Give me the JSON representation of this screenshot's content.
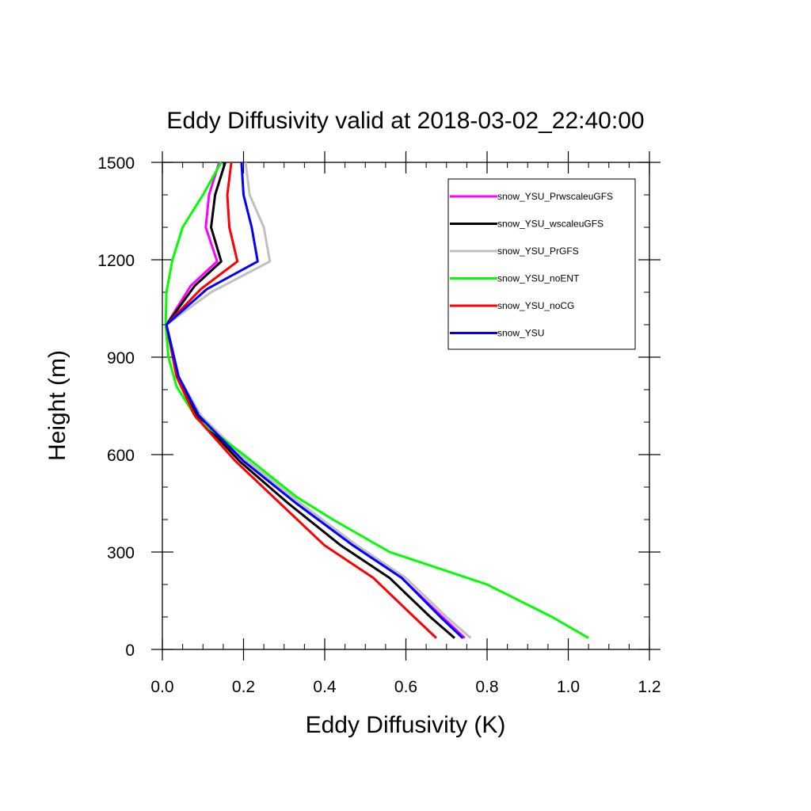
{
  "chart_data": {
    "type": "line",
    "title": "Eddy Diffusivity valid at 2018-03-02_22:40:00",
    "xlabel": "Eddy Diffusivity (K)",
    "ylabel": "Height (m)",
    "xlim": [
      0,
      1.2
    ],
    "ylim": [
      0,
      1500
    ],
    "xticks": [
      0.0,
      0.2,
      0.4,
      0.6,
      0.8,
      1.0,
      1.2
    ],
    "xtick_labels": [
      "0.0",
      "0.2",
      "0.4",
      "0.6",
      "0.8",
      "1.0",
      "1.2"
    ],
    "yticks": [
      0,
      300,
      600,
      900,
      1200,
      1500
    ],
    "ytick_labels": [
      "0",
      "300",
      "600",
      "900",
      "1200",
      "1500"
    ],
    "legend_position": "top-right",
    "series": [
      {
        "name": "snow_YSU_PrwscaleuGFS",
        "color": "#ff00ff",
        "points": [
          [
            0.745,
            35
          ],
          [
            0.69,
            100
          ],
          [
            0.59,
            220
          ],
          [
            0.47,
            320
          ],
          [
            0.33,
            450
          ],
          [
            0.2,
            580
          ],
          [
            0.09,
            720
          ],
          [
            0.04,
            840
          ],
          [
            0.01,
            1000
          ],
          [
            0.07,
            1120
          ],
          [
            0.135,
            1195
          ],
          [
            0.107,
            1300
          ],
          [
            0.115,
            1400
          ],
          [
            0.14,
            1500
          ]
        ]
      },
      {
        "name": "snow_YSU_wscaleuGFS",
        "color": "#000000",
        "points": [
          [
            0.72,
            35
          ],
          [
            0.66,
            100
          ],
          [
            0.56,
            220
          ],
          [
            0.44,
            320
          ],
          [
            0.31,
            450
          ],
          [
            0.19,
            580
          ],
          [
            0.085,
            720
          ],
          [
            0.04,
            840
          ],
          [
            0.01,
            1000
          ],
          [
            0.08,
            1120
          ],
          [
            0.145,
            1195
          ],
          [
            0.12,
            1300
          ],
          [
            0.13,
            1400
          ],
          [
            0.155,
            1500
          ]
        ]
      },
      {
        "name": "snow_YSU_PrGFS",
        "color": "#c0c0c0",
        "points": [
          [
            0.76,
            35
          ],
          [
            0.7,
            100
          ],
          [
            0.6,
            220
          ],
          [
            0.48,
            320
          ],
          [
            0.34,
            450
          ],
          [
            0.21,
            580
          ],
          [
            0.095,
            720
          ],
          [
            0.04,
            840
          ],
          [
            0.01,
            1000
          ],
          [
            0.12,
            1100
          ],
          [
            0.265,
            1195
          ],
          [
            0.25,
            1300
          ],
          [
            0.215,
            1400
          ],
          [
            0.205,
            1500
          ]
        ]
      },
      {
        "name": "snow_YSU_noENT",
        "color": "#00ff00",
        "points": [
          [
            1.05,
            35
          ],
          [
            0.96,
            100
          ],
          [
            0.8,
            200
          ],
          [
            0.56,
            300
          ],
          [
            0.42,
            400
          ],
          [
            0.33,
            470
          ],
          [
            0.2,
            600
          ],
          [
            0.085,
            710
          ],
          [
            0.035,
            810
          ],
          [
            0.015,
            900
          ],
          [
            0.008,
            1000
          ],
          [
            0.01,
            1100
          ],
          [
            0.025,
            1200
          ],
          [
            0.05,
            1300
          ],
          [
            0.1,
            1400
          ],
          [
            0.145,
            1500
          ]
        ]
      },
      {
        "name": "snow_YSU_noCG",
        "color": "#ff0000",
        "points": [
          [
            0.675,
            35
          ],
          [
            0.62,
            100
          ],
          [
            0.52,
            220
          ],
          [
            0.4,
            320
          ],
          [
            0.29,
            450
          ],
          [
            0.18,
            580
          ],
          [
            0.08,
            720
          ],
          [
            0.035,
            840
          ],
          [
            0.01,
            1000
          ],
          [
            0.095,
            1110
          ],
          [
            0.185,
            1195
          ],
          [
            0.165,
            1300
          ],
          [
            0.16,
            1400
          ],
          [
            0.17,
            1500
          ]
        ]
      },
      {
        "name": "snow_YSU",
        "color": "#0000ff",
        "points": [
          [
            0.74,
            35
          ],
          [
            0.685,
            100
          ],
          [
            0.59,
            220
          ],
          [
            0.47,
            320
          ],
          [
            0.33,
            450
          ],
          [
            0.2,
            580
          ],
          [
            0.09,
            720
          ],
          [
            0.04,
            840
          ],
          [
            0.01,
            1000
          ],
          [
            0.11,
            1110
          ],
          [
            0.235,
            1195
          ],
          [
            0.22,
            1300
          ],
          [
            0.2,
            1400
          ],
          [
            0.195,
            1500
          ]
        ]
      }
    ]
  }
}
